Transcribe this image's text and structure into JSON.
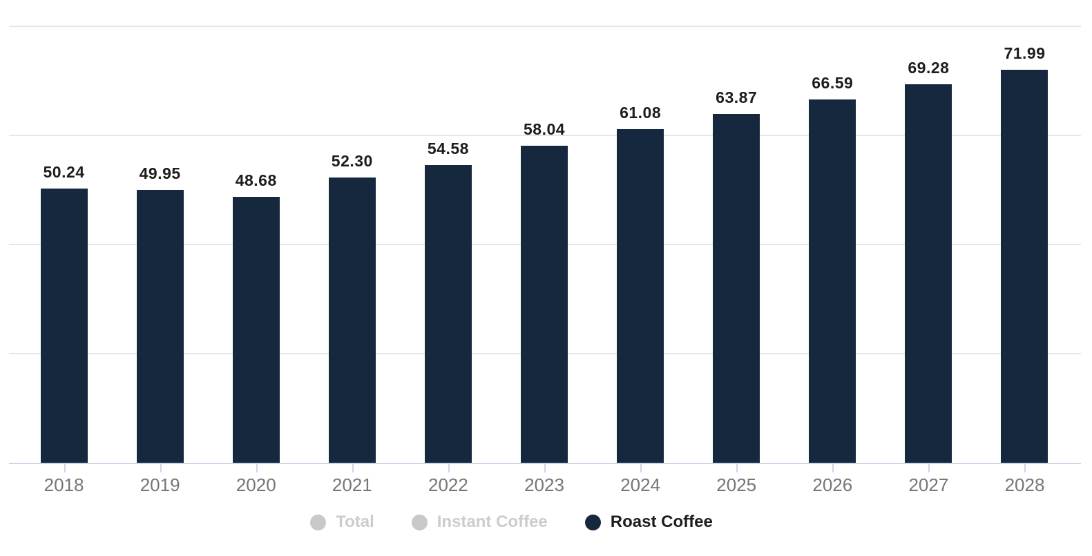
{
  "chart": {
    "background": "#ffffff",
    "bar_color": "#16283e",
    "grid_color": "#e7e7e7",
    "axis_color": "#ccd6eb",
    "x_label_color": "#757575",
    "value_label_color": "#1d1d1d",
    "disabled_marker_color": "#c8c8c8",
    "disabled_text_color": "#cccccc"
  },
  "chart_data": {
    "type": "bar",
    "title": "",
    "xlabel": "",
    "ylabel": "",
    "categories": [
      "2018",
      "2019",
      "2020",
      "2021",
      "2022",
      "2023",
      "2024",
      "2025",
      "2026",
      "2027",
      "2028"
    ],
    "series": [
      {
        "name": "Total",
        "visible": false,
        "color": "#c8c8c8",
        "values": []
      },
      {
        "name": "Instant Coffee",
        "visible": false,
        "color": "#c8c8c8",
        "values": []
      },
      {
        "name": "Roast Coffee",
        "visible": true,
        "color": "#16283e",
        "values": [
          50.24,
          49.95,
          48.68,
          52.3,
          54.58,
          58.04,
          61.08,
          63.87,
          66.59,
          69.28,
          71.99
        ]
      }
    ],
    "value_labels": [
      "50.24",
      "49.95",
      "48.68",
      "52.30",
      "54.58",
      "58.04",
      "61.08",
      "63.87",
      "66.59",
      "69.28",
      "71.99"
    ],
    "ylim": [
      0,
      85
    ],
    "gridline_values": [
      20,
      40,
      60,
      80
    ],
    "grid": true,
    "legend_position": "bottom"
  },
  "legend": {
    "items": [
      {
        "label": "Total",
        "enabled": false,
        "color": "#c8c8c8"
      },
      {
        "label": "Instant Coffee",
        "enabled": false,
        "color": "#c8c8c8"
      },
      {
        "label": "Roast Coffee",
        "enabled": true,
        "color": "#16283e"
      }
    ]
  }
}
